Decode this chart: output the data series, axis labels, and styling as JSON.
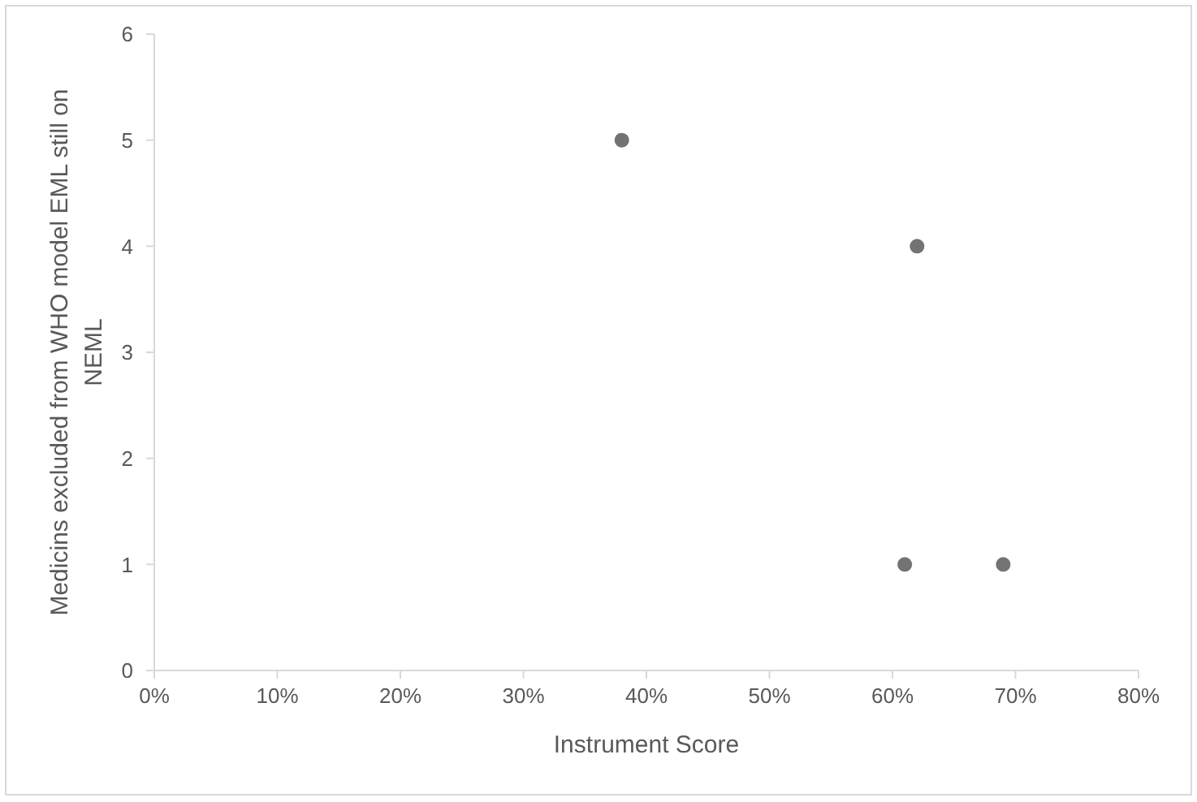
{
  "chart_data": {
    "type": "scatter",
    "xlabel": "Instrument Score",
    "ylabel": "Medicins excluded from WHO model EML still on NEML",
    "x": [
      38,
      62,
      61,
      69
    ],
    "values": [
      5,
      4,
      1,
      1
    ],
    "color": "#737373",
    "marker": "circle",
    "xlim": [
      0,
      80
    ],
    "xticks": [
      {
        "value": 0,
        "label": "0%"
      },
      {
        "value": 10,
        "label": "10%"
      },
      {
        "value": 20,
        "label": "20%"
      },
      {
        "value": 30,
        "label": "30%"
      },
      {
        "value": 40,
        "label": "40%"
      },
      {
        "value": 50,
        "label": "50%"
      },
      {
        "value": 60,
        "label": "60%"
      },
      {
        "value": 70,
        "label": "70%"
      },
      {
        "value": 80,
        "label": "80%"
      }
    ],
    "ylim": [
      0,
      6
    ],
    "yticks": [
      0,
      1,
      2,
      3,
      4,
      5,
      6
    ]
  }
}
